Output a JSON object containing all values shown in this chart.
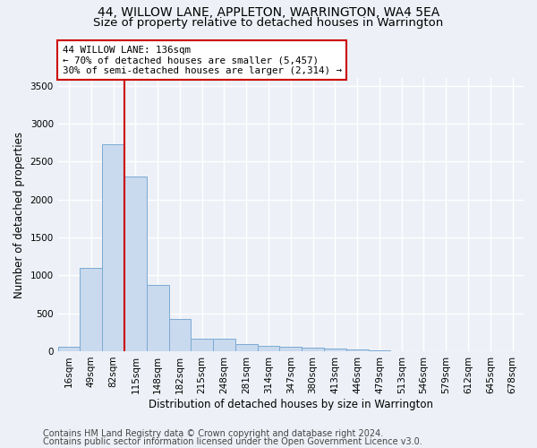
{
  "title": "44, WILLOW LANE, APPLETON, WARRINGTON, WA4 5EA",
  "subtitle": "Size of property relative to detached houses in Warrington",
  "xlabel": "Distribution of detached houses by size in Warrington",
  "ylabel": "Number of detached properties",
  "bar_labels": [
    "16sqm",
    "49sqm",
    "82sqm",
    "115sqm",
    "148sqm",
    "182sqm",
    "215sqm",
    "248sqm",
    "281sqm",
    "314sqm",
    "347sqm",
    "380sqm",
    "413sqm",
    "446sqm",
    "479sqm",
    "513sqm",
    "546sqm",
    "579sqm",
    "612sqm",
    "645sqm",
    "678sqm"
  ],
  "bar_values": [
    55,
    1100,
    2730,
    2300,
    875,
    430,
    170,
    165,
    90,
    65,
    55,
    45,
    30,
    20,
    10,
    5,
    2,
    0,
    0,
    0,
    0
  ],
  "bar_color": "#c9d9ee",
  "bar_edge_color": "#7baad4",
  "red_line_x": 2.5,
  "red_line_color": "#cc0000",
  "annotation_text": "44 WILLOW LANE: 136sqm\n← 70% of detached houses are smaller (5,457)\n30% of semi-detached houses are larger (2,314) →",
  "annotation_box_color": "#ffffff",
  "annotation_box_edge": "#cc0000",
  "ylim": [
    0,
    3600
  ],
  "yticks": [
    0,
    500,
    1000,
    1500,
    2000,
    2500,
    3000,
    3500
  ],
  "footer_line1": "Contains HM Land Registry data © Crown copyright and database right 2024.",
  "footer_line2": "Contains public sector information licensed under the Open Government Licence v3.0.",
  "bg_color": "#edf1f7",
  "plot_bg_color": "#edf1f7",
  "grid_color": "#ffffff",
  "title_fontsize": 10,
  "subtitle_fontsize": 9.5,
  "axis_label_fontsize": 8.5,
  "tick_fontsize": 7.5,
  "annotation_fontsize": 7.8,
  "footer_fontsize": 7.0
}
